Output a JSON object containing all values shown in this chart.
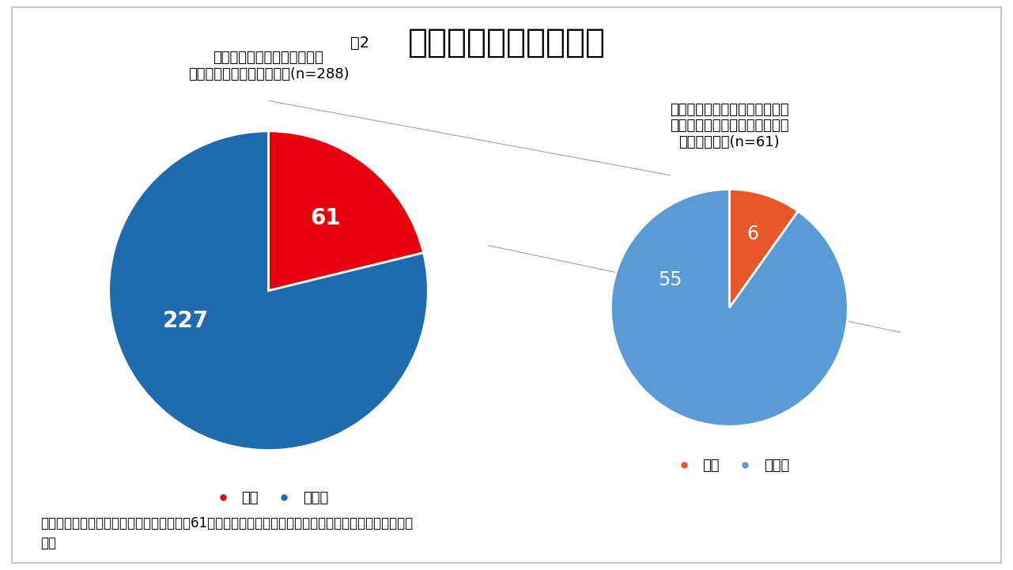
{
  "title_prefix": "図2",
  "title_main": "生理による授業欠席率",
  "left_chart": {
    "title_line1": "生理の場合に、大学の授業を",
    "title_line2": "休んだことはありますか？(n=288)",
    "values": [
      61,
      227
    ],
    "label_yes": "61",
    "label_no": "227",
    "color_yes": "#E8000D",
    "color_no": "#1F6BB0",
    "legend_yes": "はい",
    "legend_no": "いいえ"
  },
  "right_chart": {
    "title_line1": "授業の欠席理由として教職員に",
    "title_line2": "生理であることを伝えたことは",
    "title_line3": "ありますか？(n=61)",
    "values": [
      6,
      55
    ],
    "label_yes": "6",
    "label_no": "55",
    "color_yes": "#E8562A",
    "color_no": "#5B9BD5",
    "legend_yes": "はい",
    "legend_no": "いいえ"
  },
  "footer_line1": "生理の場合に授業を休んだことがある人が61人もいるのに対して、教職員に伝えたことがある人が少な",
  "footer_line2": "い。",
  "connector_color": "#AAAAAA",
  "background_color": "#FFFFFF",
  "border_color": "#BBBBBB"
}
